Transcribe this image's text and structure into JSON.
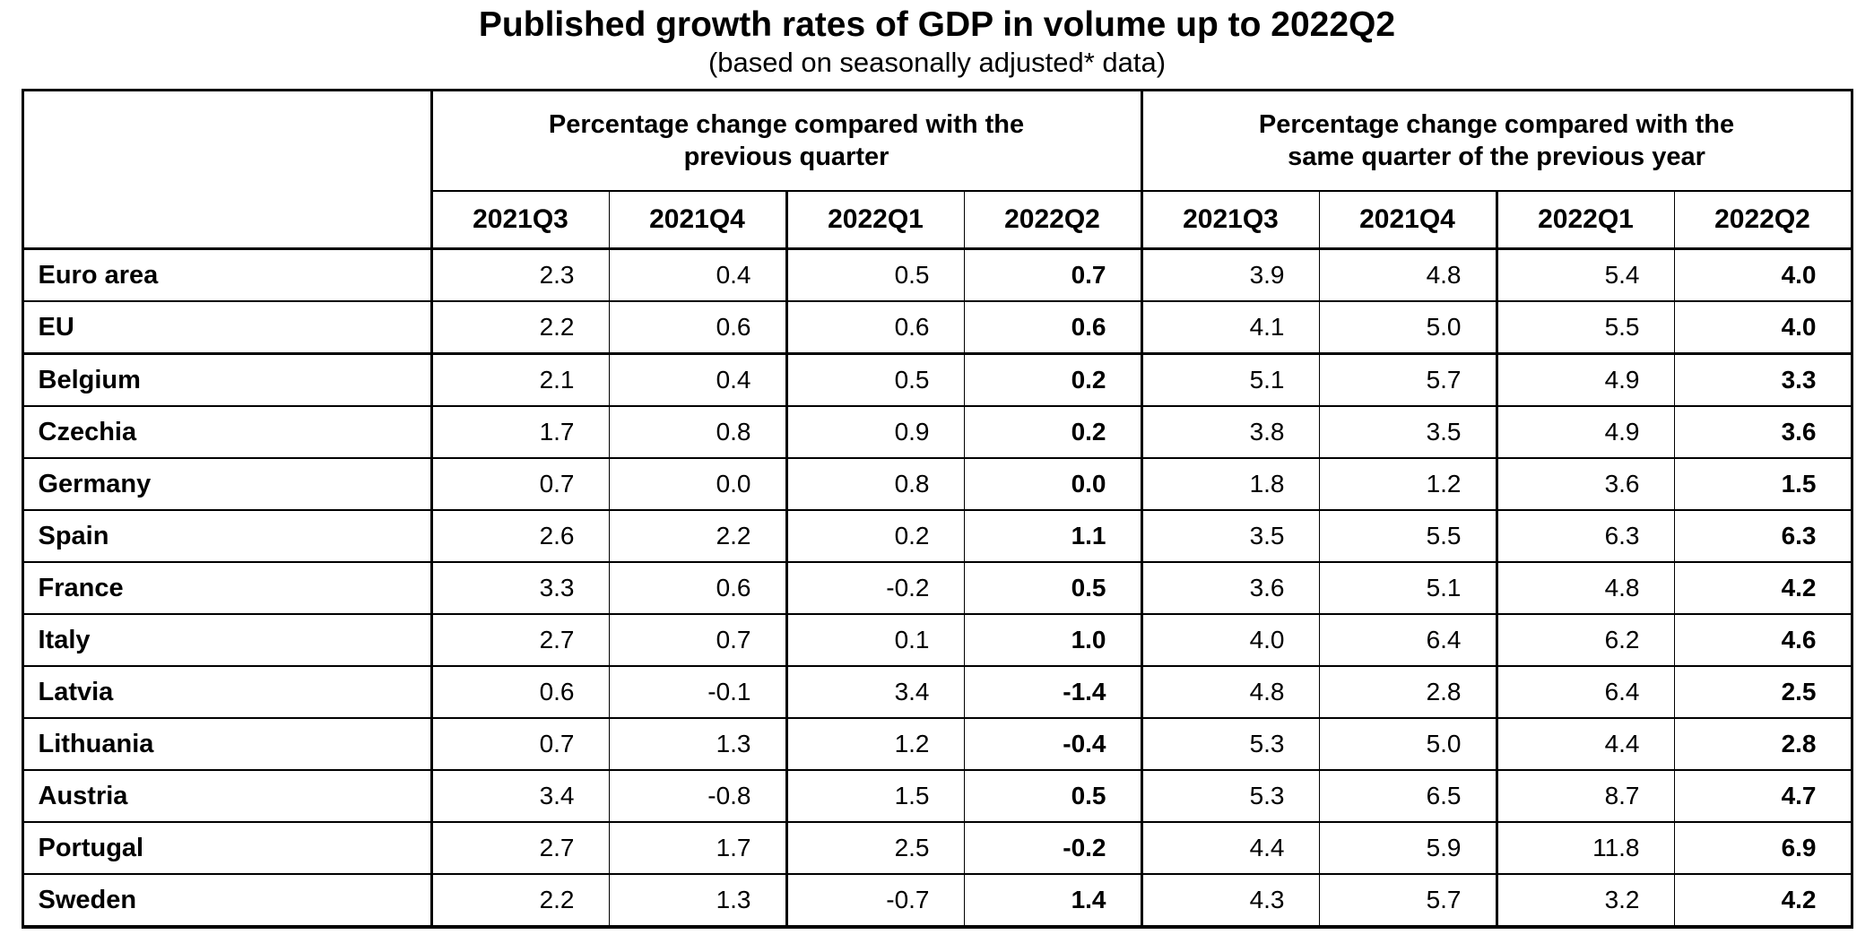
{
  "title": "Published growth rates of GDP in volume up to 2022Q2",
  "subtitle": "(based on seasonally adjusted* data)",
  "chart_data": {
    "type": "table",
    "title": "Published growth rates of GDP in volume up to 2022Q2",
    "subtitle": "(based on seasonally adjusted* data)",
    "column_groups": [
      {
        "label": "Percentage change compared with the previous quarter",
        "columns": [
          "2021Q3",
          "2021Q4",
          "2022Q1",
          "2022Q2"
        ]
      },
      {
        "label": "Percentage change compared with the same quarter of the previous year",
        "columns": [
          "2021Q3",
          "2021Q4",
          "2022Q1",
          "2022Q2"
        ]
      }
    ],
    "rows": [
      {
        "name": "Euro area",
        "qoq": [
          "2.3",
          "0.4",
          "0.5",
          "0.7"
        ],
        "yoy": [
          "3.9",
          "4.8",
          "5.4",
          "4.0"
        ]
      },
      {
        "name": "EU",
        "qoq": [
          "2.2",
          "0.6",
          "0.6",
          "0.6"
        ],
        "yoy": [
          "4.1",
          "5.0",
          "5.5",
          "4.0"
        ]
      },
      {
        "name": "Belgium",
        "qoq": [
          "2.1",
          "0.4",
          "0.5",
          "0.2"
        ],
        "yoy": [
          "5.1",
          "5.7",
          "4.9",
          "3.3"
        ]
      },
      {
        "name": "Czechia",
        "qoq": [
          "1.7",
          "0.8",
          "0.9",
          "0.2"
        ],
        "yoy": [
          "3.8",
          "3.5",
          "4.9",
          "3.6"
        ]
      },
      {
        "name": "Germany",
        "qoq": [
          "0.7",
          "0.0",
          "0.8",
          "0.0"
        ],
        "yoy": [
          "1.8",
          "1.2",
          "3.6",
          "1.5"
        ]
      },
      {
        "name": "Spain",
        "qoq": [
          "2.6",
          "2.2",
          "0.2",
          "1.1"
        ],
        "yoy": [
          "3.5",
          "5.5",
          "6.3",
          "6.3"
        ]
      },
      {
        "name": "France",
        "qoq": [
          "3.3",
          "0.6",
          "-0.2",
          "0.5"
        ],
        "yoy": [
          "3.6",
          "5.1",
          "4.8",
          "4.2"
        ]
      },
      {
        "name": "Italy",
        "qoq": [
          "2.7",
          "0.7",
          "0.1",
          "1.0"
        ],
        "yoy": [
          "4.0",
          "6.4",
          "6.2",
          "4.6"
        ]
      },
      {
        "name": "Latvia",
        "qoq": [
          "0.6",
          "-0.1",
          "3.4",
          "-1.4"
        ],
        "yoy": [
          "4.8",
          "2.8",
          "6.4",
          "2.5"
        ]
      },
      {
        "name": "Lithuania",
        "qoq": [
          "0.7",
          "1.3",
          "1.2",
          "-0.4"
        ],
        "yoy": [
          "5.3",
          "5.0",
          "4.4",
          "2.8"
        ]
      },
      {
        "name": "Austria",
        "qoq": [
          "3.4",
          "-0.8",
          "1.5",
          "0.5"
        ],
        "yoy": [
          "5.3",
          "6.5",
          "8.7",
          "4.7"
        ]
      },
      {
        "name": "Portugal",
        "qoq": [
          "2.7",
          "1.7",
          "2.5",
          "-0.2"
        ],
        "yoy": [
          "4.4",
          "5.9",
          "11.8",
          "6.9"
        ]
      },
      {
        "name": "Sweden",
        "qoq": [
          "2.2",
          "1.3",
          "-0.7",
          "1.4"
        ],
        "yoy": [
          "4.3",
          "5.7",
          "3.2",
          "4.2"
        ]
      }
    ],
    "layout_hints": {
      "bold_columns": [
        "2022Q2"
      ],
      "thick_separators": [
        "after country column",
        "between column groups",
        "between 2021Q4 and 2022Q1",
        "below EU row"
      ]
    }
  }
}
